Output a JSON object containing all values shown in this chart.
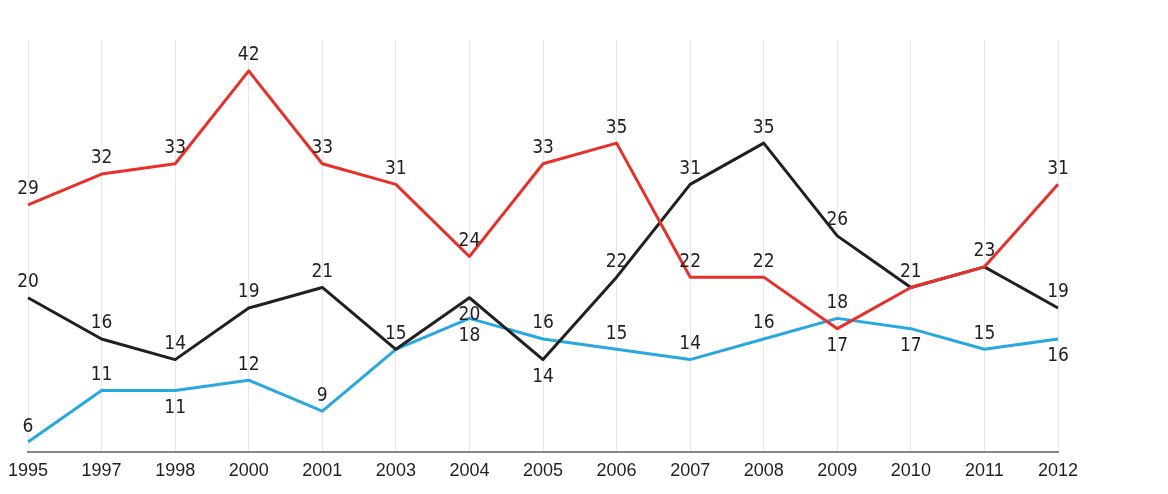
{
  "chart_data": {
    "type": "line",
    "categories": [
      "1995",
      "1997",
      "1998",
      "2000",
      "2001",
      "2003",
      "2004",
      "2005",
      "2006",
      "2007",
      "2008",
      "2009",
      "2010",
      "2011",
      "2012"
    ],
    "series": [
      {
        "color": "#e8302a",
        "values": [
          29,
          32,
          33,
          42,
          33,
          31,
          24,
          33,
          35,
          22,
          22,
          17,
          21,
          23,
          31
        ],
        "value_labels": [
          "29",
          "32",
          "33",
          "42",
          "33",
          "31",
          "24",
          "33",
          "35",
          "22",
          "22",
          "17",
          null,
          null,
          "31"
        ]
      },
      {
        "color": "#231f20",
        "values": [
          20,
          16,
          14,
          19,
          21,
          15,
          20,
          14,
          22,
          31,
          35,
          26,
          21,
          23,
          19
        ],
        "value_labels": [
          "20",
          "16",
          "14",
          "19",
          "21",
          "15",
          "20",
          "14",
          "22",
          "31",
          "35",
          "26",
          "21",
          "23",
          "19"
        ]
      },
      {
        "color": "#29a8e0",
        "values": [
          6,
          11,
          11,
          12,
          9,
          15,
          18,
          16,
          15,
          14,
          16,
          18,
          17,
          15,
          16
        ],
        "value_labels": [
          "6",
          "11",
          "11",
          "12",
          "9",
          null,
          "18",
          "16",
          "15",
          "14",
          "16",
          "18",
          "17",
          "15",
          "16"
        ]
      }
    ],
    "grid": "x",
    "marker": "none",
    "line_style": "solid"
  }
}
